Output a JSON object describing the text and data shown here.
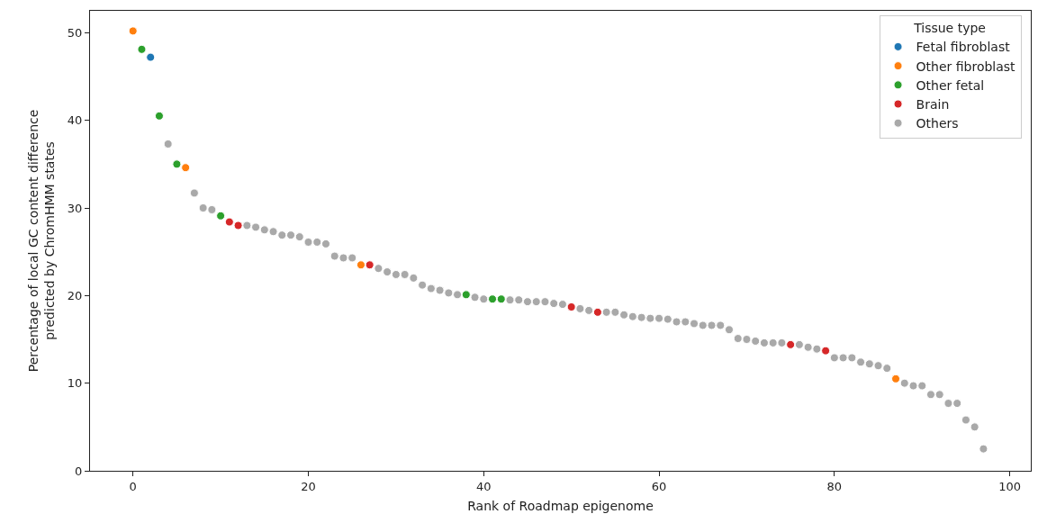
{
  "chart_data": {
    "type": "scatter",
    "xlabel": "Rank of Roadmap epigenome",
    "ylabel": "Percentage of local GC content difference\npredicted by ChromHMM states",
    "legend_title": "Tissue type",
    "xlim": [
      -4.9,
      102.4
    ],
    "ylim": [
      0,
      52.5
    ],
    "xticks": [
      0,
      20,
      40,
      60,
      80,
      100
    ],
    "yticks": [
      0,
      10,
      20,
      30,
      40,
      50
    ],
    "grid": false,
    "legend": "top right",
    "marker": "circle",
    "series": [
      {
        "name": "Fetal fibroblast",
        "color": "#1f77b4",
        "x": [
          2
        ],
        "values": [
          47.2
        ]
      },
      {
        "name": "Other fibroblast",
        "color": "#ff7f0e",
        "x": [
          0,
          6,
          26,
          87
        ],
        "values": [
          50.2,
          34.6,
          23.5,
          10.5
        ]
      },
      {
        "name": "Other fetal",
        "color": "#2ca02c",
        "x": [
          1,
          3,
          5,
          10,
          38,
          41,
          42
        ],
        "values": [
          48.1,
          40.5,
          35.0,
          29.1,
          20.1,
          19.6,
          19.6
        ]
      },
      {
        "name": "Brain",
        "color": "#d62728",
        "x": [
          11,
          12,
          27,
          50,
          53,
          75,
          79
        ],
        "values": [
          28.4,
          28.0,
          23.5,
          18.7,
          18.1,
          14.4,
          13.7
        ]
      },
      {
        "name": "Others",
        "color": "#a9a9a9",
        "x": [
          4,
          7,
          8,
          9,
          13,
          14,
          15,
          16,
          17,
          18,
          19,
          20,
          21,
          22,
          23,
          24,
          25,
          28,
          29,
          30,
          31,
          32,
          33,
          34,
          35,
          36,
          37,
          39,
          40,
          43,
          44,
          45,
          46,
          47,
          48,
          49,
          51,
          52,
          54,
          55,
          56,
          57,
          58,
          59,
          60,
          61,
          62,
          63,
          64,
          65,
          66,
          67,
          68,
          69,
          70,
          71,
          72,
          73,
          74,
          76,
          77,
          78,
          80,
          81,
          82,
          83,
          84,
          85,
          86,
          88,
          89,
          90,
          91,
          92,
          93,
          94,
          95,
          96,
          97
        ],
        "values": [
          37.3,
          31.7,
          30.0,
          29.8,
          28.0,
          27.8,
          27.5,
          27.3,
          26.9,
          26.9,
          26.7,
          26.1,
          26.1,
          25.9,
          24.5,
          24.3,
          24.3,
          23.1,
          22.7,
          22.4,
          22.4,
          22.0,
          21.2,
          20.8,
          20.6,
          20.3,
          20.1,
          19.8,
          19.6,
          19.5,
          19.5,
          19.3,
          19.3,
          19.3,
          19.1,
          19.0,
          18.5,
          18.3,
          18.1,
          18.1,
          17.8,
          17.6,
          17.5,
          17.4,
          17.4,
          17.3,
          17.0,
          17.0,
          16.8,
          16.6,
          16.6,
          16.6,
          16.1,
          15.1,
          15.0,
          14.8,
          14.6,
          14.6,
          14.6,
          14.4,
          14.1,
          13.9,
          12.9,
          12.9,
          12.9,
          12.4,
          12.2,
          12.0,
          11.7,
          10.0,
          9.7,
          9.7,
          8.7,
          8.7,
          7.7,
          7.7,
          5.8,
          5.0,
          2.5
        ]
      }
    ]
  }
}
